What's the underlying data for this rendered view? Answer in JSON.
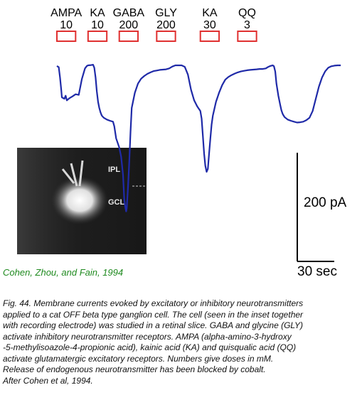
{
  "chart_data": {
    "type": "line",
    "title": "",
    "xlabel": "",
    "ylabel": "",
    "series": [
      {
        "name": "",
        "color": "#1f2aa8",
        "x": [
          0,
          3,
          5,
          7,
          8,
          12,
          14,
          16,
          20,
          25,
          30,
          35,
          40,
          45,
          48,
          50,
          55,
          58,
          60,
          62,
          64,
          66,
          68,
          70,
          72,
          75,
          80,
          85,
          90,
          92,
          95,
          100,
          103,
          106,
          108,
          110,
          111,
          112,
          114,
          116,
          118,
          120,
          125,
          130,
          135,
          140,
          145,
          150,
          155,
          160,
          165,
          170,
          175,
          180,
          185,
          190,
          195,
          200,
          205,
          210,
          215,
          220,
          225,
          230,
          232,
          234,
          236,
          238,
          240,
          242,
          244,
          246,
          248,
          250,
          255,
          260,
          265,
          270,
          275,
          280,
          285,
          290,
          295,
          300,
          305,
          310,
          315,
          320,
          325,
          330,
          335,
          338,
          340,
          342,
          344,
          346,
          348,
          350,
          352,
          355,
          358,
          360,
          362,
          365,
          370,
          375,
          380,
          385,
          390,
          395,
          400,
          405,
          410,
          415,
          420,
          425,
          430,
          435,
          440,
          445,
          450,
          455
        ],
        "y": [
          2,
          6,
          40,
          80,
          105,
          110,
          100,
          115,
          108,
          102,
          95,
          97,
          45,
          10,
          2,
          0,
          -1,
          -2,
          8,
          40,
          85,
          120,
          140,
          155,
          165,
          172,
          178,
          182,
          185,
          200,
          240,
          270,
          300,
          360,
          440,
          470,
          480,
          470,
          400,
          320,
          220,
          140,
          90,
          60,
          44,
          35,
          28,
          23,
          19,
          17,
          15,
          14,
          13,
          10,
          4,
          0,
          0,
          0,
          5,
          30,
          80,
          115,
          135,
          150,
          175,
          230,
          290,
          330,
          350,
          340,
          290,
          240,
          195,
          165,
          120,
          90,
          65,
          47,
          38,
          32,
          27,
          23,
          20,
          18,
          16,
          15,
          14,
          13,
          12,
          12,
          10,
          6,
          4,
          2,
          1,
          0,
          3,
          20,
          60,
          100,
          130,
          148,
          160,
          170,
          178,
          182,
          185,
          188,
          187,
          185,
          180,
          172,
          150,
          110,
          70,
          40,
          20,
          8,
          3,
          1,
          0,
          0
        ]
      }
    ],
    "applications": [
      {
        "drug": "AMPA",
        "dose": "10",
        "start": 0,
        "end": 30
      },
      {
        "drug": "KA",
        "dose": "10",
        "start": 50,
        "end": 80
      },
      {
        "drug": "GABA",
        "dose": "200",
        "start": 100,
        "end": 130
      },
      {
        "drug": "GLY",
        "dose": "200",
        "start": 160,
        "end": 190
      },
      {
        "drug": "KA",
        "dose": "30",
        "start": 230,
        "end": 260
      },
      {
        "drug": "QQ",
        "dose": "3",
        "start": 290,
        "end": 320
      }
    ],
    "scale_bar": {
      "current_pA": 200,
      "current_label": "200 pA",
      "time_s": 30,
      "time_label": "30 sec"
    },
    "grid": false,
    "legend": "none",
    "colors": {
      "trace": "#1f2aa8",
      "drug_bar": "#e03030",
      "citation": "#1f8a1f"
    }
  },
  "inset": {
    "labels": [
      "IPL",
      "GCL"
    ]
  },
  "citation": "Cohen, Zhou, and Fain, 1994",
  "caption_lines": [
    "Fig. 44. Membrane currents evoked by excitatory or inhibitory neurotransmitters",
    " applied to a cat OFF beta type ganglion cell. The cell (seen in the inset together",
    " with recording electrode) was studied in a retinal slice. GABA and glycine (GLY)",
    " activate inhibitory neurotransmitter receptors. AMPA (alpha-amino-3-hydroxy",
    "-5-methylisoazole-4-propionic acid), kainic acid (KA) and quisqualic acid (QQ)",
    " activate glutamatergic excitatory receptors. Numbers give doses in mM.",
    "Release of endogenous neurotransmitter has been blocked by cobalt.",
    "After Cohen et al, 1994."
  ]
}
